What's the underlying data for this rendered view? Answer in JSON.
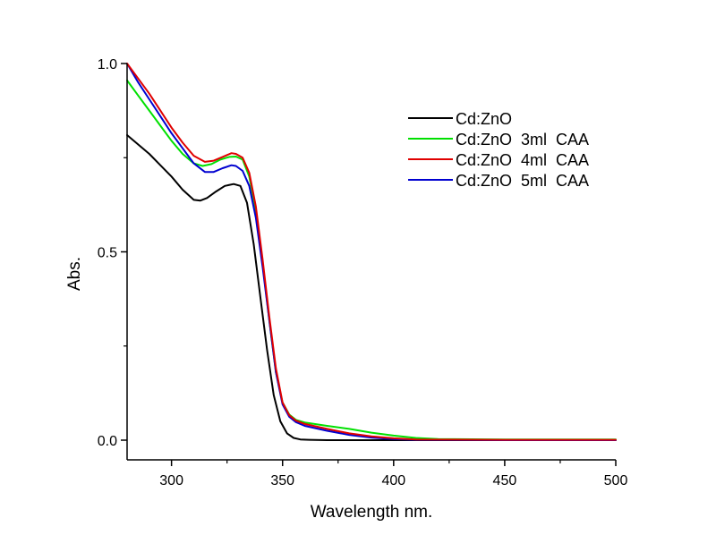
{
  "chart_data": {
    "type": "line",
    "title": "",
    "xlabel": "Wavelength nm.",
    "ylabel": "Abs.",
    "xlim": [
      280,
      500
    ],
    "ylim": [
      -0.05,
      1.0
    ],
    "x_ticks": [
      300,
      350,
      400,
      450,
      500
    ],
    "x_tick_labels": [
      "300",
      "350",
      "400",
      "450",
      "500"
    ],
    "x_minor_ticks": [
      325,
      375,
      425,
      475
    ],
    "y_ticks": [
      0.0,
      0.5,
      1.0
    ],
    "y_tick_labels": [
      "0.0",
      "0.5",
      "1.0"
    ],
    "y_minor_ticks": [
      0.25,
      0.75
    ],
    "grid": false,
    "legend_position": "top-right",
    "series": [
      {
        "name": "Cd:ZnO",
        "color": "#000000",
        "x": [
          280,
          285,
          290,
          295,
          300,
          305,
          310,
          313,
          316,
          320,
          324,
          328,
          331,
          334,
          337,
          340,
          343,
          346,
          349,
          352,
          355,
          358,
          362,
          370,
          380,
          400,
          450,
          500
        ],
        "y": [
          0.81,
          0.785,
          0.76,
          0.73,
          0.7,
          0.665,
          0.638,
          0.636,
          0.643,
          0.66,
          0.675,
          0.68,
          0.675,
          0.63,
          0.52,
          0.38,
          0.24,
          0.12,
          0.05,
          0.018,
          0.006,
          0.002,
          0.001,
          0.0,
          0.0,
          0.0,
          0.0,
          0.0
        ]
      },
      {
        "name": "Cd:ZnO  3ml  CAA",
        "color": "#00e000",
        "x": [
          280,
          285,
          290,
          295,
          300,
          305,
          310,
          314,
          318,
          322,
          326,
          329,
          332,
          335,
          338,
          341,
          344,
          347,
          350,
          353,
          356,
          360,
          370,
          380,
          390,
          400,
          410,
          420,
          450,
          500
        ],
        "y": [
          0.955,
          0.915,
          0.875,
          0.835,
          0.795,
          0.76,
          0.735,
          0.728,
          0.733,
          0.745,
          0.752,
          0.753,
          0.745,
          0.7,
          0.61,
          0.47,
          0.32,
          0.18,
          0.1,
          0.068,
          0.054,
          0.047,
          0.038,
          0.03,
          0.02,
          0.012,
          0.006,
          0.003,
          0.002,
          0.002
        ]
      },
      {
        "name": "Cd:ZnO  4ml  CAA",
        "color": "#e00000",
        "x": [
          280,
          285,
          290,
          295,
          300,
          305,
          310,
          315,
          319,
          323,
          327,
          329,
          332,
          335,
          338,
          341,
          344,
          347,
          350,
          353,
          356,
          360,
          370,
          380,
          390,
          400,
          410,
          450,
          500
        ],
        "y": [
          1.0,
          0.96,
          0.92,
          0.875,
          0.83,
          0.79,
          0.755,
          0.739,
          0.742,
          0.752,
          0.762,
          0.76,
          0.75,
          0.71,
          0.62,
          0.48,
          0.33,
          0.19,
          0.1,
          0.066,
          0.052,
          0.043,
          0.03,
          0.018,
          0.01,
          0.005,
          0.002,
          0.001,
          0.001
        ]
      },
      {
        "name": "Cd:ZnO  5ml  CAA",
        "color": "#0000d0",
        "x": [
          280,
          285,
          290,
          295,
          300,
          305,
          310,
          315,
          319,
          323,
          327,
          329,
          332,
          335,
          338,
          341,
          344,
          347,
          350,
          353,
          356,
          360,
          370,
          380,
          390,
          400,
          410,
          450,
          500
        ],
        "y": [
          1.0,
          0.95,
          0.905,
          0.86,
          0.815,
          0.775,
          0.735,
          0.712,
          0.712,
          0.722,
          0.73,
          0.728,
          0.715,
          0.675,
          0.59,
          0.46,
          0.32,
          0.18,
          0.095,
          0.062,
          0.048,
          0.038,
          0.025,
          0.014,
          0.007,
          0.003,
          0.001,
          0.0,
          0.0
        ]
      }
    ]
  }
}
